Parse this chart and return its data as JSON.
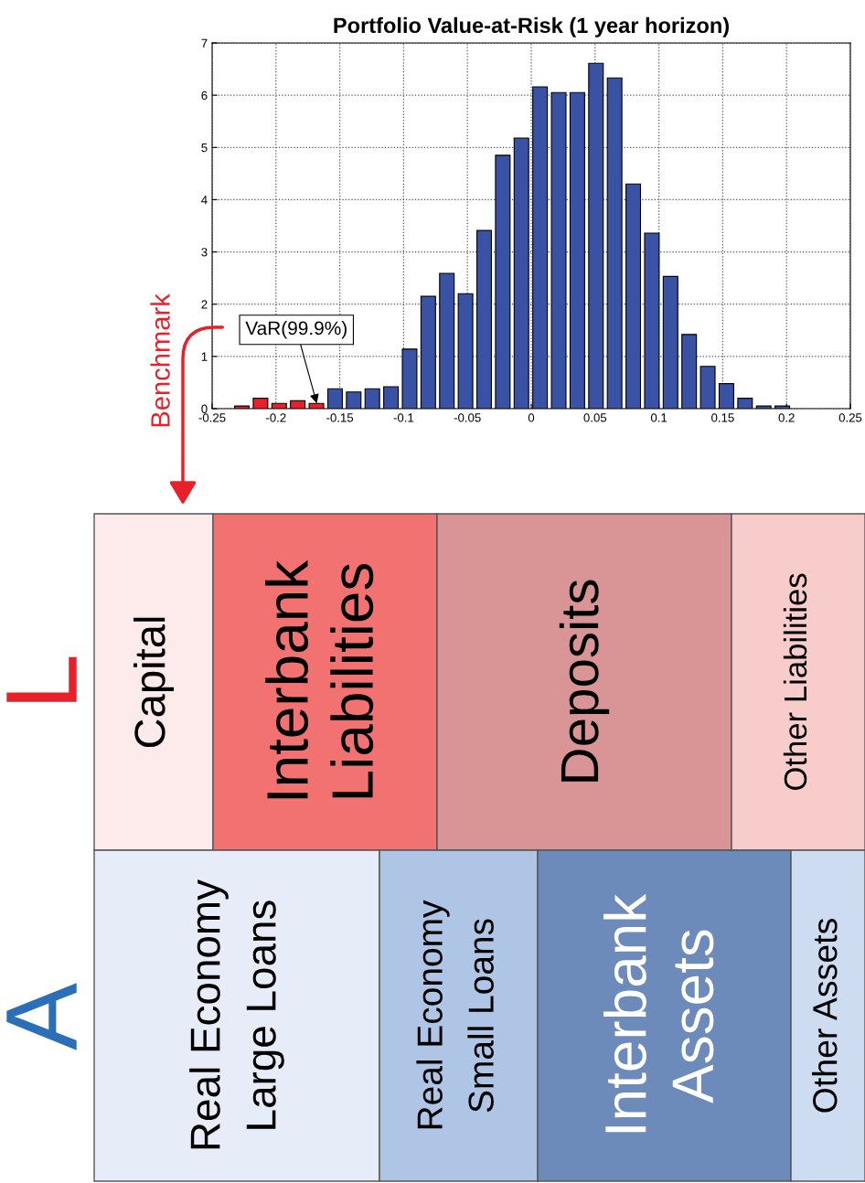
{
  "chart_data": [
    {
      "type": "histogram",
      "title": "Portfolio Value-at-Risk (1 year horizon)",
      "bins": [
        -0.234,
        -0.2194,
        -0.2048,
        -0.1902,
        -0.1756,
        -0.161,
        -0.1464,
        -0.1318,
        -0.1172,
        -0.1026,
        -0.088,
        -0.0734,
        -0.0588,
        -0.0442,
        -0.0296,
        -0.015,
        -0.0004,
        0.0142,
        0.0288,
        0.0434,
        0.058,
        0.0726,
        0.0872,
        0.1018,
        0.1164,
        0.131,
        0.1456,
        0.1602,
        0.1748,
        0.1894,
        0.204
      ],
      "values": [
        0.05,
        0.2,
        0.1,
        0.15,
        0.1,
        0.38,
        0.32,
        0.38,
        0.42,
        1.14,
        2.15,
        2.59,
        2.2,
        3.41,
        4.85,
        5.18,
        6.16,
        6.05,
        6.05,
        6.61,
        6.33,
        4.3,
        3.36,
        2.53,
        1.42,
        0.81,
        0.48,
        0.2,
        0.05,
        0.05
      ],
      "colors": [
        "#e8202a",
        "#e8202a",
        "#e8202a",
        "#e8202a",
        "#e8202a",
        "#3a52a3",
        "#3a52a3",
        "#3a52a3",
        "#3a52a3",
        "#3a52a3",
        "#3a52a3",
        "#3a52a3",
        "#3a52a3",
        "#3a52a3",
        "#3a52a3",
        "#3a52a3",
        "#3a52a3",
        "#3a52a3",
        "#3a52a3",
        "#3a52a3",
        "#3a52a3",
        "#3a52a3",
        "#3a52a3",
        "#3a52a3",
        "#3a52a3",
        "#3a52a3",
        "#3a52a3",
        "#3a52a3",
        "#3a52a3",
        "#3a52a3"
      ],
      "xlim": [
        -0.25,
        0.25
      ],
      "ylim": [
        0,
        7
      ],
      "xticks": [
        -0.25,
        -0.2,
        -0.15,
        -0.1,
        -0.05,
        0,
        0.05,
        0.1,
        0.15,
        0.2,
        0.25
      ],
      "yticks": [
        0,
        1,
        2,
        3,
        4,
        5,
        6,
        7
      ],
      "grid": true,
      "annotations": [
        {
          "text": "VaR(99.9%)",
          "x": -0.168,
          "y": 0.1
        }
      ]
    },
    {
      "type": "other",
      "annotations": [
        "Capital",
        "Interbank\nLiabilities",
        "Deposits",
        "Other Liabilities",
        "Real Economy\nLarge Loans",
        "Real Economy\nSmall Loans",
        "Interbank\nAssets",
        "Other Assets",
        "L",
        "A",
        "Benchmark"
      ],
      "colors": [
        "#fdeaea",
        "#f27272",
        "#d99595",
        "#f9cccc",
        "#e6edf8",
        "#aec5e6",
        "#6c8bbb",
        "#cddcf0",
        "#e8202a",
        "#2a6fb8",
        "#e8202a"
      ]
    }
  ]
}
